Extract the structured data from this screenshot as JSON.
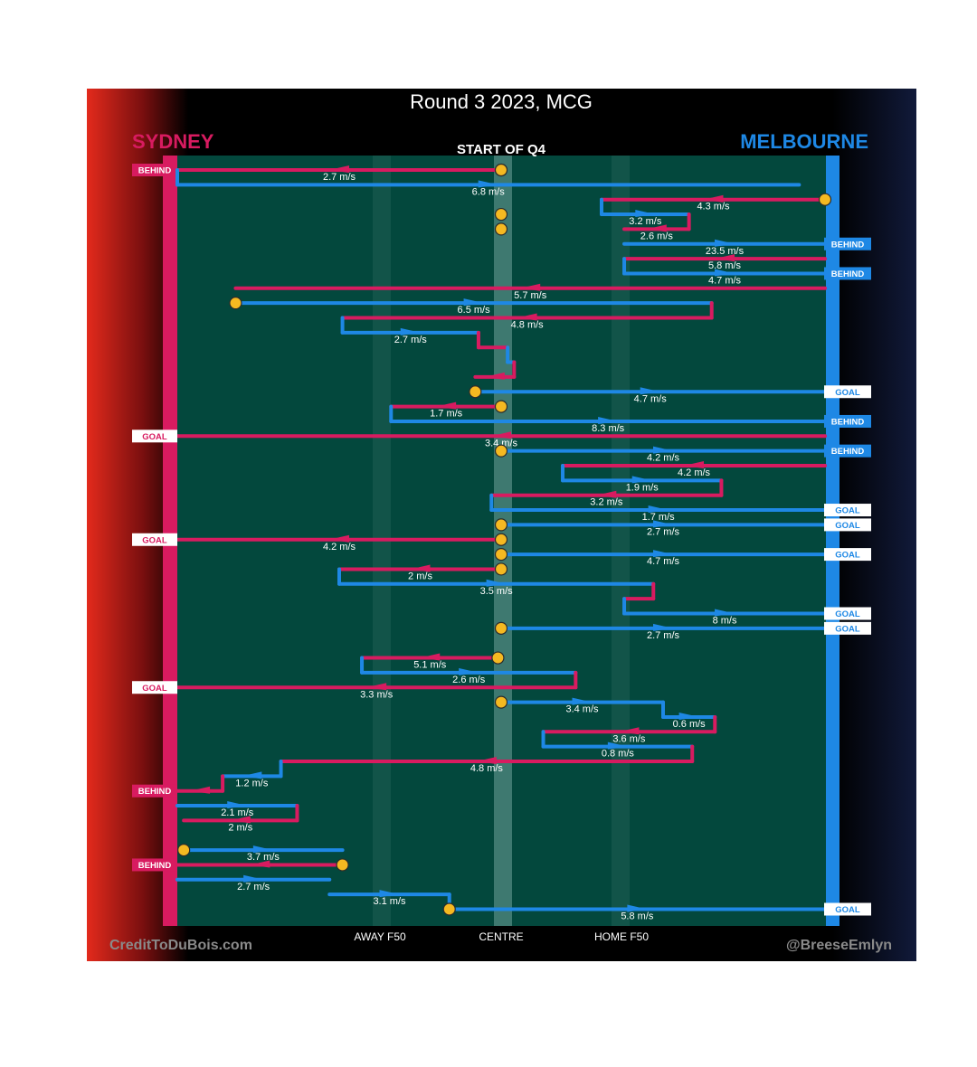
{
  "header": {
    "title": "Round 3 2023, MCG",
    "subtitle": "START OF Q4",
    "team_left": "SYDNEY",
    "team_right": "MELBOURNE"
  },
  "footer": {
    "credit_left": "CreditToDuBois.com",
    "credit_right": "@BreeseEmlyn"
  },
  "colors": {
    "sydney": "#d81b60",
    "melbourne": "#1e88e5",
    "field": "#03483d",
    "stoppage": "#f5b921",
    "background": "#000000"
  },
  "chart_data": {
    "type": "line",
    "title": "Round 3 2023, MCG",
    "subtitle": "START OF Q4",
    "xlabel": "",
    "ylabel": "",
    "x_axis": {
      "ticks": [
        "AWAY F50",
        "CENTRE",
        "HOME F50"
      ],
      "tick_positions": [
        -0.35,
        0.0,
        0.35
      ],
      "range": [
        -1,
        1
      ]
    },
    "teams": [
      {
        "name": "SYDNEY",
        "color": "#d81b60",
        "side": "left"
      },
      {
        "name": "MELBOURNE",
        "color": "#1e88e5",
        "side": "right"
      }
    ],
    "centre_marks": [
      {
        "x": 0.0,
        "row": 0
      },
      {
        "x": 0.0,
        "row": 3
      },
      {
        "x": 0.0,
        "row": 4
      }
    ],
    "chains": [
      {
        "team": "Sydney",
        "row": 0,
        "from": 0.0,
        "to": -1,
        "speed": "2.7 m/s",
        "start_stoppage": true,
        "end": "BEHIND"
      },
      {
        "team": "Melbourne",
        "row": 1,
        "from": -1,
        "to": 0.92,
        "speed": "6.8 m/s",
        "rise": 1
      },
      {
        "team": "Sydney",
        "row": 2,
        "from": 1,
        "to": 0.31,
        "speed": "4.3 m/s",
        "start_stoppage": true
      },
      {
        "team": "Melbourne",
        "row": 3,
        "from": 0.31,
        "to": 0.58,
        "speed": "3.2 m/s",
        "rise": 1
      },
      {
        "team": "Sydney",
        "row": 4,
        "from": 0.58,
        "to": 0.38,
        "speed": "2.6 m/s",
        "rise": 1
      },
      {
        "team": "Melbourne",
        "row": 5,
        "from": 0.38,
        "to": 1,
        "speed": "23.5 m/s",
        "end": "BEHIND"
      },
      {
        "team": "Sydney",
        "row": 6,
        "from": 1,
        "to": 0.38,
        "speed": "5.8 m/s"
      },
      {
        "team": "Melbourne",
        "row": 7,
        "from": 0.38,
        "to": 1,
        "speed": "4.7 m/s",
        "rise": 1,
        "end": "BEHIND"
      },
      {
        "team": "Sydney",
        "row": 8,
        "from": 1,
        "to": -0.82,
        "speed": "5.7 m/s"
      },
      {
        "team": "Melbourne",
        "row": 9,
        "from": -0.82,
        "to": 0.65,
        "speed": "6.5 m/s",
        "start_stoppage": true
      },
      {
        "team": "Sydney",
        "row": 10,
        "from": 0.65,
        "to": -0.49,
        "speed": "4.8 m/s",
        "rise": 1
      },
      {
        "team": "Melbourne",
        "row": 11,
        "from": -0.49,
        "to": -0.07,
        "speed": "2.7 m/s",
        "rise": 1
      },
      {
        "team": "Sydney",
        "row": 12,
        "from": -0.07,
        "to": 0.02,
        "speed": "",
        "rise": 1
      },
      {
        "team": "Melbourne",
        "row": 13,
        "from": 0.02,
        "to": 0.04,
        "speed": "",
        "rise": 1
      },
      {
        "team": "Sydney",
        "row": 14,
        "from": 0.04,
        "to": -0.08,
        "speed": "",
        "rise": 1
      },
      {
        "team": "Melbourne",
        "row": 15,
        "from": -0.08,
        "to": 1,
        "speed": "4.7 m/s",
        "start_stoppage": true,
        "end": "GOAL"
      },
      {
        "team": "Sydney",
        "row": 16,
        "from": 0.0,
        "to": -0.34,
        "speed": "1.7 m/s",
        "start_stoppage": true
      },
      {
        "team": "Melbourne",
        "row": 17,
        "from": -0.34,
        "to": 1,
        "speed": "8.3 m/s",
        "rise": 1,
        "end": "BEHIND"
      },
      {
        "team": "Sydney",
        "row": 18,
        "from": 1,
        "to": -1,
        "speed": "3.4 m/s",
        "end": "GOAL"
      },
      {
        "team": "Melbourne",
        "row": 19,
        "from": 0.0,
        "to": 1,
        "speed": "4.2 m/s",
        "start_stoppage": true,
        "end": "BEHIND"
      },
      {
        "team": "Sydney",
        "row": 20,
        "from": 1,
        "to": 0.19,
        "speed": "4.2 m/s"
      },
      {
        "team": "Melbourne",
        "row": 21,
        "from": 0.19,
        "to": 0.68,
        "speed": "1.9 m/s",
        "rise": 1
      },
      {
        "team": "Sydney",
        "row": 22,
        "from": 0.68,
        "to": -0.03,
        "speed": "3.2 m/s",
        "rise": 1
      },
      {
        "team": "Melbourne",
        "row": 23,
        "from": -0.03,
        "to": 1,
        "speed": "1.7 m/s",
        "rise": 1,
        "end": "GOAL"
      },
      {
        "team": "Melbourne",
        "row": 24,
        "from": 0.0,
        "to": 1,
        "speed": "2.7 m/s",
        "start_stoppage": true,
        "end": "GOAL"
      },
      {
        "team": "Sydney",
        "row": 25,
        "from": 0.0,
        "to": -1,
        "speed": "4.2 m/s",
        "start_stoppage": true,
        "end": "GOAL"
      },
      {
        "team": "Melbourne",
        "row": 26,
        "from": 0.0,
        "to": 1,
        "speed": "4.7 m/s",
        "start_stoppage": true,
        "end": "GOAL"
      },
      {
        "team": "Sydney",
        "row": 27,
        "from": 0.0,
        "to": -0.5,
        "speed": "2 m/s",
        "start_stoppage": true
      },
      {
        "team": "Melbourne",
        "row": 28,
        "from": -0.5,
        "to": 0.47,
        "speed": "3.5 m/s",
        "rise": 1
      },
      {
        "team": "Sydney",
        "row": 29,
        "from": 0.47,
        "to": 0.38,
        "speed": "",
        "rise": 1
      },
      {
        "team": "Melbourne",
        "row": 30,
        "from": 0.38,
        "to": 1,
        "speed": "8 m/s",
        "rise": 1,
        "end": "GOAL"
      },
      {
        "team": "Melbourne",
        "row": 31,
        "from": 0.0,
        "to": 1,
        "speed": "2.7 m/s",
        "start_stoppage": true,
        "end": "GOAL"
      },
      {
        "team": "Sydney",
        "row": 33,
        "from": -0.01,
        "to": -0.43,
        "speed": "5.1 m/s",
        "start_stoppage": true
      },
      {
        "team": "Melbourne",
        "row": 34,
        "from": -0.43,
        "to": 0.23,
        "speed": "2.6 m/s",
        "rise": 1
      },
      {
        "team": "Sydney",
        "row": 35,
        "from": 0.23,
        "to": -1,
        "speed": "3.3 m/s",
        "rise": 1,
        "end": "GOAL"
      },
      {
        "team": "Melbourne",
        "row": 36,
        "from": 0.0,
        "to": 0.5,
        "speed": "3.4 m/s",
        "start_stoppage": true
      },
      {
        "team": "Melbourne",
        "row": 37,
        "from": 0.5,
        "to": 0.66,
        "speed": "0.6 m/s",
        "rise": 1
      },
      {
        "team": "Sydney",
        "row": 38,
        "from": 0.66,
        "to": 0.13,
        "speed": "3.6 m/s",
        "rise": 1
      },
      {
        "team": "Melbourne",
        "row": 39,
        "from": 0.13,
        "to": 0.59,
        "speed": "0.8 m/s",
        "rise": 1
      },
      {
        "team": "Sydney",
        "row": 40,
        "from": 0.59,
        "to": -0.68,
        "speed": "4.8 m/s",
        "rise": 1
      },
      {
        "team": "Melbourne",
        "row": 41,
        "from": -0.68,
        "to": -0.86,
        "speed": "1.2 m/s",
        "rise": 1
      },
      {
        "team": "Sydney",
        "row": 42,
        "from": -0.86,
        "to": -1,
        "speed": "",
        "rise": 1,
        "end": "BEHIND"
      },
      {
        "team": "Melbourne",
        "row": 43,
        "from": -1,
        "to": -0.63,
        "speed": "2.1 m/s"
      },
      {
        "team": "Sydney",
        "row": 44,
        "from": -0.63,
        "to": -0.98,
        "speed": "2 m/s",
        "rise": 1
      },
      {
        "team": "Melbourne",
        "row": 46,
        "from": -0.98,
        "to": -0.49,
        "speed": "3.7 m/s",
        "start_stoppage": true
      },
      {
        "team": "Sydney",
        "row": 47,
        "from": -0.49,
        "to": -1,
        "speed": "",
        "start_stoppage": true,
        "end": "BEHIND"
      },
      {
        "team": "Melbourne",
        "row": 48,
        "from": -1,
        "to": -0.53,
        "speed": "2.7 m/s"
      },
      {
        "team": "Melbourne",
        "row": 49,
        "from": -0.53,
        "to": -0.16,
        "speed": "3.1 m/s"
      },
      {
        "team": "Melbourne",
        "row": 50,
        "from": -0.16,
        "to": 1,
        "speed": "5.8 m/s",
        "start_stoppage": true,
        "rise": 1,
        "end": "GOAL"
      }
    ]
  }
}
